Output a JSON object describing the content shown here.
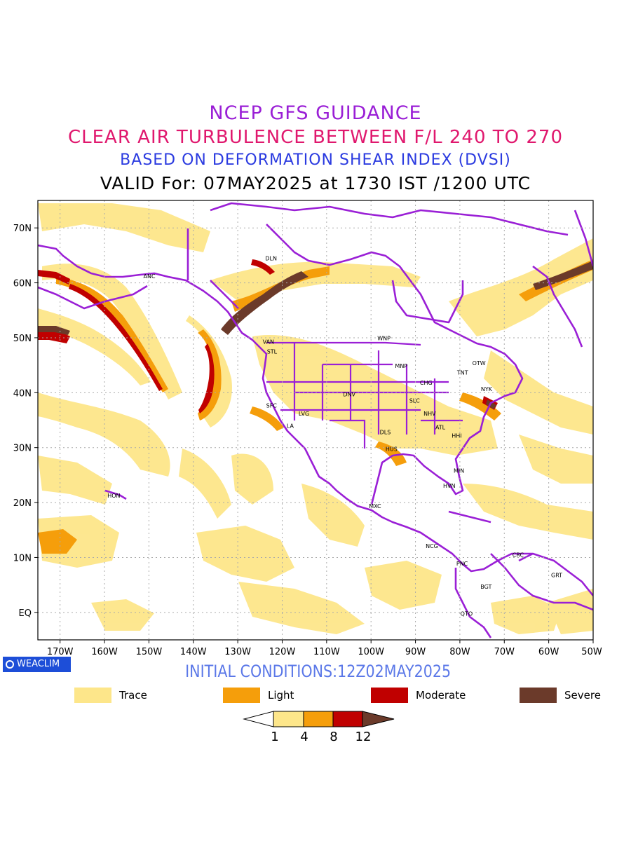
{
  "titles": {
    "line1": "NCEP GFS GUIDANCE",
    "line2": "CLEAR AIR TURBULENCE BETWEEN F/L 240 TO 270",
    "line3": "BASED ON DEFORMATION SHEAR INDEX (DVSI)",
    "line4": "VALID For: 07MAY2025 at 1730 IST /1200 UTC"
  },
  "axes": {
    "lat_labels": [
      "70N",
      "60N",
      "50N",
      "40N",
      "30N",
      "20N",
      "10N",
      "EQ"
    ],
    "lon_labels": [
      "170W",
      "160W",
      "150W",
      "140W",
      "130W",
      "120W",
      "110W",
      "100W",
      "90W",
      "80W",
      "70W",
      "60W",
      "50W"
    ],
    "lon_range": [
      -175,
      -50
    ],
    "lat_range": [
      -5,
      75
    ]
  },
  "stations": [
    {
      "code": "ANC",
      "lon": -149.9,
      "lat": 61.2
    },
    {
      "code": "DLN",
      "lon": -122.5,
      "lat": 64.5
    },
    {
      "code": "VAN",
      "lon": -123.1,
      "lat": 49.3
    },
    {
      "code": "STL",
      "lon": -122.3,
      "lat": 47.5
    },
    {
      "code": "WNP",
      "lon": -97.1,
      "lat": 49.9
    },
    {
      "code": "MNP",
      "lon": -93.2,
      "lat": 44.9
    },
    {
      "code": "OTW",
      "lon": -75.7,
      "lat": 45.4
    },
    {
      "code": "TNT",
      "lon": -79.4,
      "lat": 43.7
    },
    {
      "code": "CHG",
      "lon": -87.6,
      "lat": 41.8
    },
    {
      "code": "NYK",
      "lon": -74.0,
      "lat": 40.7
    },
    {
      "code": "DNV",
      "lon": -104.9,
      "lat": 39.7
    },
    {
      "code": "SLC",
      "lon": -90.2,
      "lat": 38.6
    },
    {
      "code": "SFC",
      "lon": -122.4,
      "lat": 37.7
    },
    {
      "code": "LVG",
      "lon": -115.1,
      "lat": 36.2
    },
    {
      "code": "NHV",
      "lon": -86.8,
      "lat": 36.2
    },
    {
      "code": "LA",
      "lon": -118.2,
      "lat": 34.0
    },
    {
      "code": "ATL",
      "lon": -84.4,
      "lat": 33.7
    },
    {
      "code": "DLS",
      "lon": -96.8,
      "lat": 32.8
    },
    {
      "code": "HHI",
      "lon": -80.7,
      "lat": 32.2
    },
    {
      "code": "HUS",
      "lon": -95.4,
      "lat": 29.8
    },
    {
      "code": "MIN",
      "lon": -80.2,
      "lat": 25.8
    },
    {
      "code": "HVN",
      "lon": -82.4,
      "lat": 23.1
    },
    {
      "code": "HON",
      "lon": -157.9,
      "lat": 21.3
    },
    {
      "code": "MXC",
      "lon": -99.1,
      "lat": 19.4
    },
    {
      "code": "NCG",
      "lon": -86.3,
      "lat": 12.1
    },
    {
      "code": "CRC",
      "lon": -66.9,
      "lat": 10.5
    },
    {
      "code": "PNC",
      "lon": -79.5,
      "lat": 8.9
    },
    {
      "code": "GRT",
      "lon": -58.2,
      "lat": 6.8
    },
    {
      "code": "BGT",
      "lon": -74.1,
      "lat": 4.7
    },
    {
      "code": "QTO",
      "lon": -78.5,
      "lat": -0.2
    }
  ],
  "watermark": "WEACLIM",
  "initial_conditions": "INITIAL CONDITIONS:12Z02MAY2025",
  "legend": [
    {
      "label": "Trace",
      "color": "#fde68a"
    },
    {
      "label": "Light",
      "color": "#f59e0b"
    },
    {
      "label": "Moderate",
      "color": "#c00000"
    },
    {
      "label": "Severe",
      "color": "#6b3a2a"
    }
  ],
  "colorbar": {
    "ticks": [
      "1",
      "4",
      "8",
      "12"
    ],
    "colors": [
      "#ffffff",
      "#fde68a",
      "#f59e0b",
      "#c00000",
      "#6b3a2a"
    ]
  },
  "colors": {
    "boundaries": "#9a1fd6",
    "trace": "#fde68a",
    "light": "#f59e0b",
    "moderate": "#c00000",
    "severe": "#6b3a2a"
  }
}
